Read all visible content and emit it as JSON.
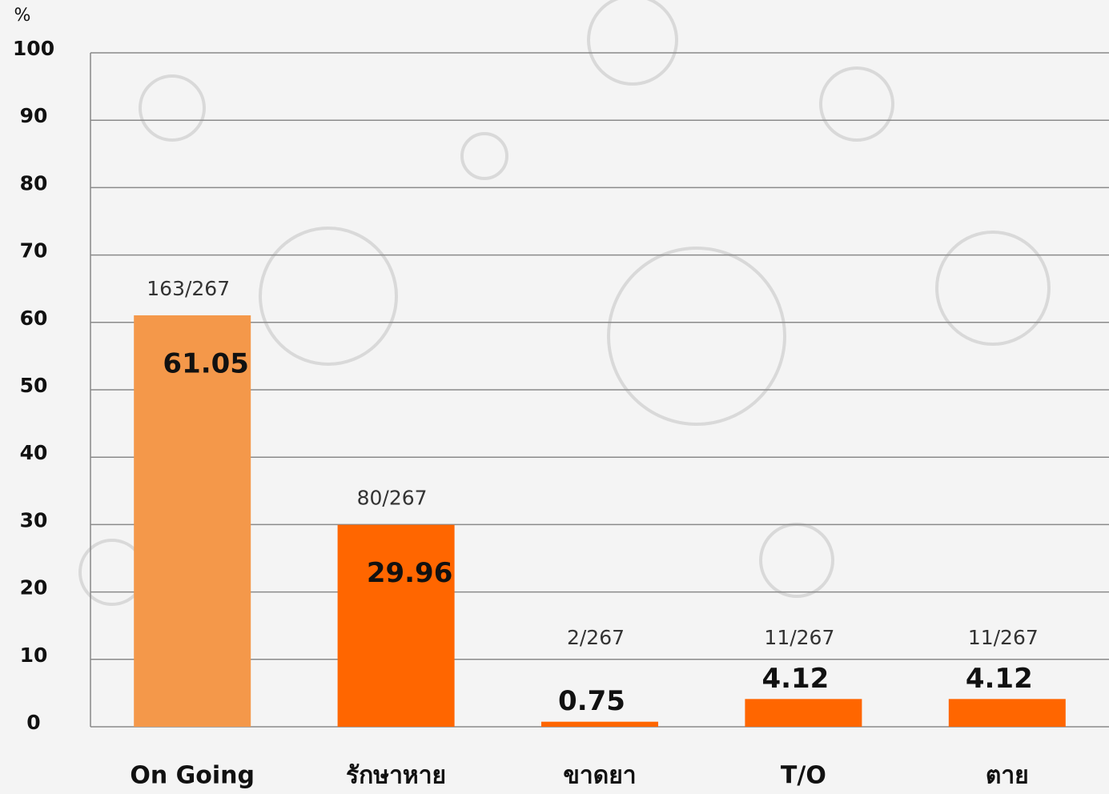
{
  "chart_data": {
    "type": "bar",
    "y_label": "%",
    "categories": [
      "On Going",
      "รักษาหาย",
      "ขาดยา",
      "T/O",
      "ตาย"
    ],
    "values": [
      61.05,
      29.96,
      0.75,
      4.12,
      4.12
    ],
    "colors": [
      "#f4984a",
      "#ff6600",
      "#ff6600",
      "#ff6600",
      "#ff6600"
    ],
    "annotations": [
      "163/267",
      "80/267",
      "2/267",
      "11/267",
      "11/267"
    ],
    "ylim": [
      0,
      100
    ],
    "yticks": [
      0,
      10,
      20,
      30,
      40,
      50,
      60,
      70,
      80,
      90,
      100
    ],
    "grid": true
  }
}
